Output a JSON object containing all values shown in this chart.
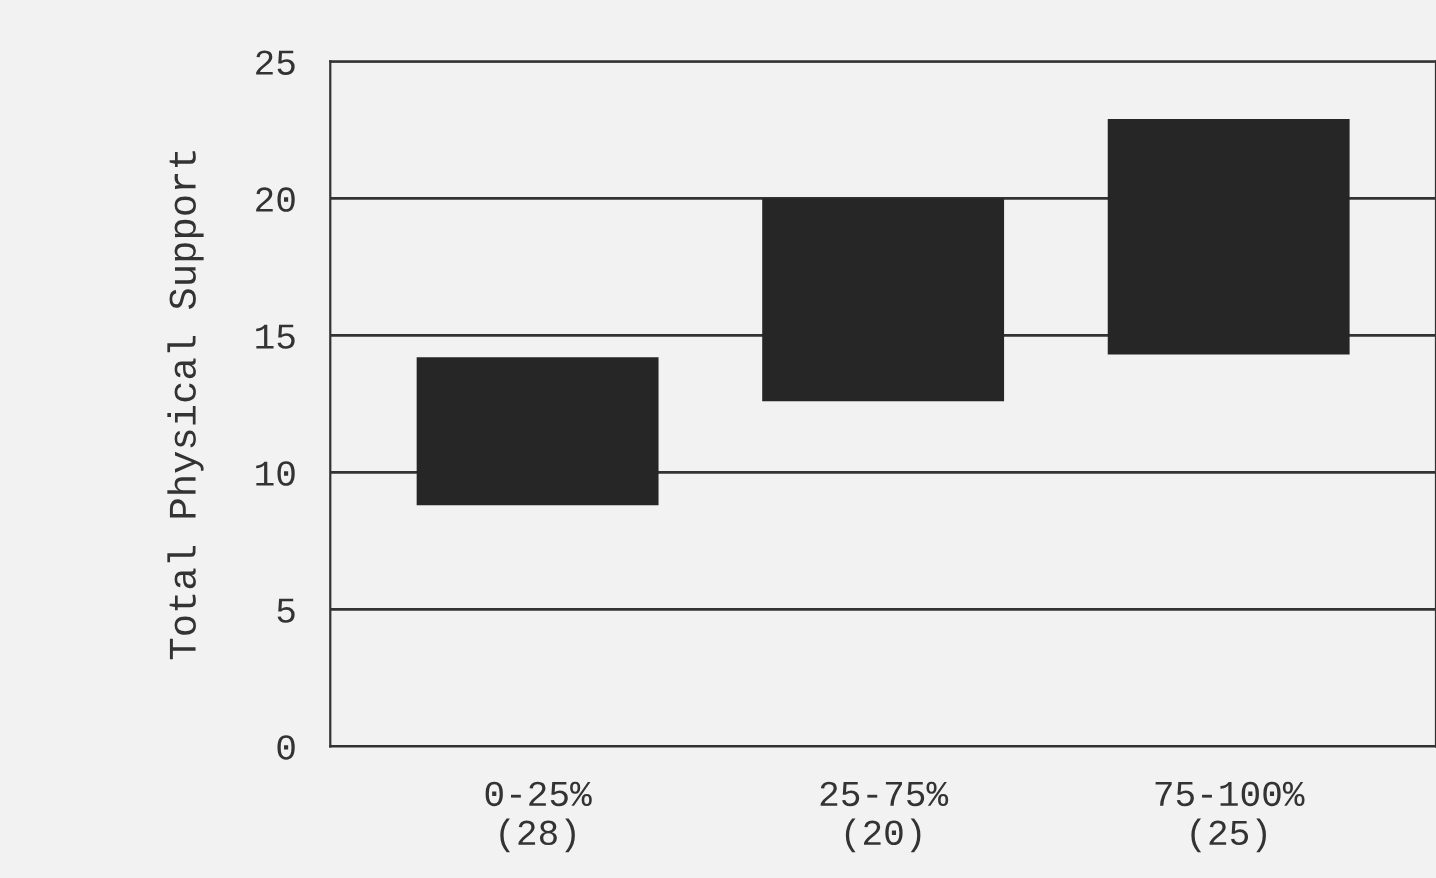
{
  "chart_data": {
    "type": "bar",
    "ylabel": "Total Physical Support",
    "categories": [
      "0-25%\n(28)",
      "25-75%\n(20)",
      "75-100%\n(25)"
    ],
    "base": [
      8.8,
      12.6,
      14.3
    ],
    "values": [
      5.4,
      7.4,
      8.6
    ],
    "color": "#262626",
    "ylim": [
      0,
      25
    ],
    "yticks": [
      0,
      5,
      10,
      15,
      20,
      25
    ],
    "grid": "y"
  }
}
